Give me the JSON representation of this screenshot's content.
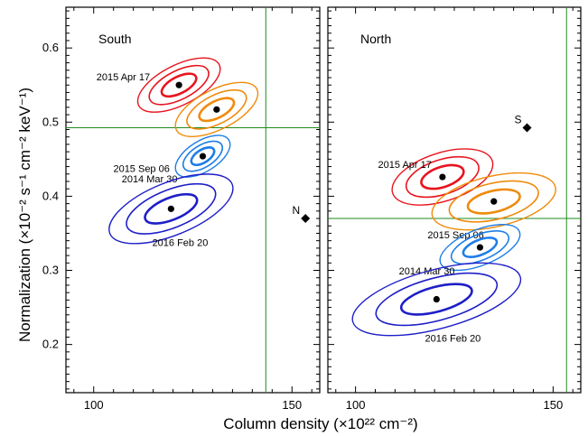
{
  "chart_data": {
    "type": "scatter",
    "ylabel": "Normalization (×10⁻² s⁻¹ cm⁻² keV⁻¹)",
    "xlabel": "Column density (×10²² cm⁻²)",
    "xlim": [
      93,
      157
    ],
    "ylim": [
      0.135,
      0.655
    ],
    "xticks": [
      "100",
      "150"
    ],
    "yticks": [
      "0.2",
      "0.3",
      "0.4",
      "0.5",
      "0.6"
    ],
    "panels": [
      {
        "title": "South",
        "reference_line": {
          "x": 143.4,
          "y": 0.4925
        },
        "other_region_point": {
          "label": "N",
          "x": 153.4,
          "y": 0.37
        },
        "epochs": [
          {
            "label": "2015 Apr 17",
            "color": "#e8141e",
            "x": 121.5,
            "y": 0.55
          },
          {
            "label": "2015 Sep 06",
            "color": "#f08a0a",
            "x": 131.0,
            "y": 0.517
          },
          {
            "label": "2014 Mar 30",
            "color": "#1e7ee6",
            "x": 127.5,
            "y": 0.454
          },
          {
            "label": "2016 Feb 20",
            "color": "#1e1ec8",
            "x": 119.5,
            "y": 0.383
          }
        ]
      },
      {
        "title": "North",
        "reference_line": {
          "x": 153.4,
          "y": 0.37
        },
        "other_region_point": {
          "label": "S",
          "x": 143.4,
          "y": 0.4925
        },
        "epochs": [
          {
            "label": "2015 Apr 17",
            "color": "#e8141e",
            "x": 122.0,
            "y": 0.426
          },
          {
            "label": "2015 Sep 06",
            "color": "#f08a0a",
            "x": 135.0,
            "y": 0.393
          },
          {
            "label": "2014 Mar 30",
            "color": "#1e7ee6",
            "x": 131.5,
            "y": 0.331
          },
          {
            "label": "2016 Feb 20",
            "color": "#1e1ec8",
            "x": 120.5,
            "y": 0.261
          }
        ]
      }
    ],
    "grid": false,
    "legend": "none"
  }
}
